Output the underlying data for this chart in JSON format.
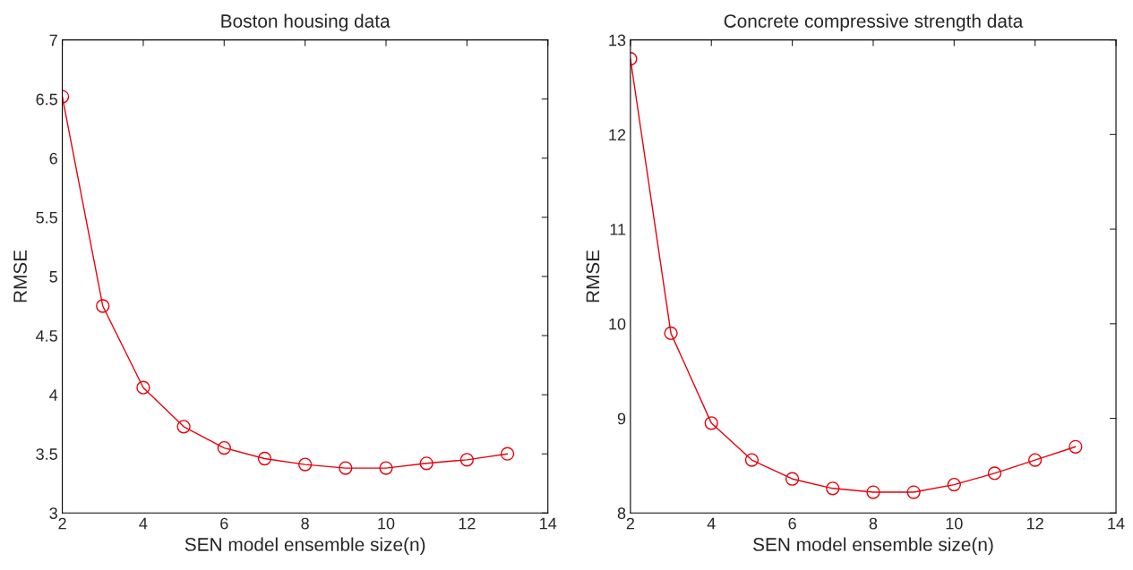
{
  "chart_data": [
    {
      "type": "line",
      "title": "Boston housing data",
      "xlabel": "SEN model ensemble size(n)",
      "ylabel": "RMSE",
      "x": [
        2,
        3,
        4,
        5,
        6,
        7,
        8,
        9,
        10,
        11,
        12,
        13
      ],
      "series": [
        {
          "color": "#e8000b",
          "values": [
            6.52,
            4.75,
            4.06,
            3.73,
            3.55,
            3.46,
            3.41,
            3.38,
            3.38,
            3.42,
            3.45,
            3.5
          ]
        }
      ],
      "xlim": [
        2,
        14
      ],
      "xticks": [
        2,
        4,
        6,
        8,
        10,
        12,
        14
      ],
      "ylim": [
        3,
        7
      ],
      "yticks": [
        3,
        3.5,
        4,
        4.5,
        5,
        5.5,
        6,
        6.5,
        7
      ],
      "marker": "circle",
      "line_style": "solid"
    },
    {
      "type": "line",
      "title": "Concrete compressive strength data",
      "xlabel": "SEN model ensemble size(n)",
      "ylabel": "RMSE",
      "x": [
        2,
        3,
        4,
        5,
        6,
        7,
        8,
        9,
        10,
        11,
        12,
        13
      ],
      "series": [
        {
          "color": "#e8000b",
          "values": [
            12.8,
            9.9,
            8.95,
            8.56,
            8.36,
            8.26,
            8.22,
            8.22,
            8.3,
            8.42,
            8.56,
            8.7
          ]
        }
      ],
      "xlim": [
        2,
        14
      ],
      "xticks": [
        2,
        4,
        6,
        8,
        10,
        12,
        14
      ],
      "ylim": [
        8,
        13
      ],
      "yticks": [
        8,
        9,
        10,
        11,
        12,
        13
      ],
      "marker": "circle",
      "line_style": "solid"
    }
  ]
}
